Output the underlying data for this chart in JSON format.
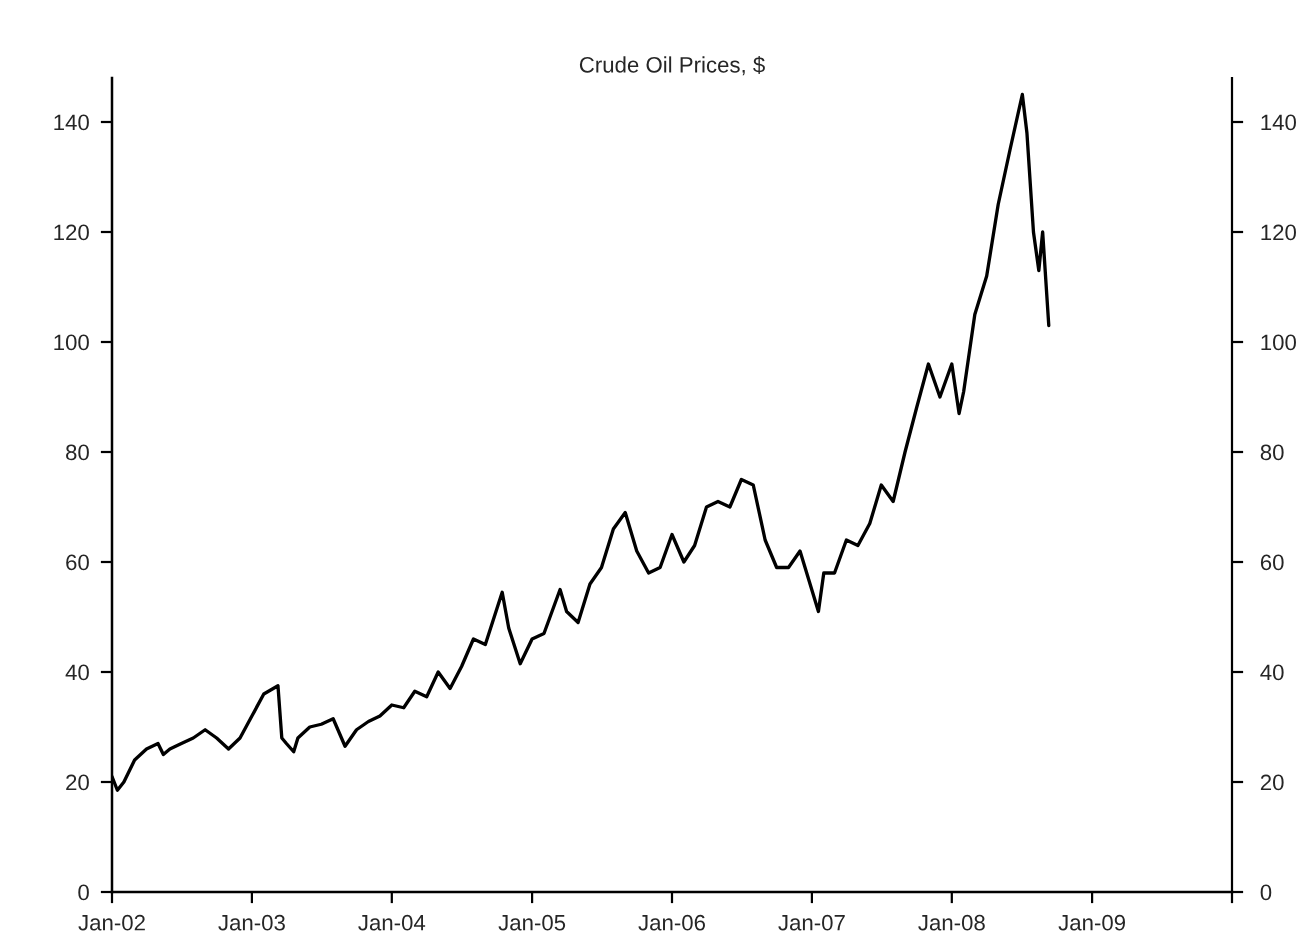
{
  "chart_data": {
    "type": "line",
    "title": "Crude Oil Prices, $",
    "x": [
      "2002-01-01",
      "2002-01-15",
      "2002-02-01",
      "2002-03-01",
      "2002-04-01",
      "2002-05-01",
      "2002-05-15",
      "2002-06-01",
      "2002-07-01",
      "2002-08-01",
      "2002-09-01",
      "2002-10-01",
      "2002-11-01",
      "2002-12-01",
      "2003-01-01",
      "2003-02-01",
      "2003-03-10",
      "2003-03-20",
      "2003-04-01",
      "2003-04-20",
      "2003-05-01",
      "2003-06-01",
      "2003-07-01",
      "2003-08-01",
      "2003-09-01",
      "2003-10-01",
      "2003-11-01",
      "2003-12-01",
      "2004-01-01",
      "2004-02-01",
      "2004-03-01",
      "2004-04-01",
      "2004-05-01",
      "2004-06-01",
      "2004-07-01",
      "2004-08-01",
      "2004-09-01",
      "2004-10-15",
      "2004-11-01",
      "2004-12-01",
      "2005-01-01",
      "2005-02-01",
      "2005-03-15",
      "2005-04-01",
      "2005-05-01",
      "2005-06-01",
      "2005-07-01",
      "2005-08-01",
      "2005-09-01",
      "2005-10-01",
      "2005-11-01",
      "2005-12-01",
      "2006-01-01",
      "2006-02-01",
      "2006-03-01",
      "2006-04-01",
      "2006-05-01",
      "2006-06-01",
      "2006-07-01",
      "2006-08-01",
      "2006-09-01",
      "2006-10-01",
      "2006-11-01",
      "2006-12-01",
      "2007-01-18",
      "2007-02-01",
      "2007-03-01",
      "2007-04-01",
      "2007-05-01",
      "2007-06-01",
      "2007-07-01",
      "2007-08-01",
      "2007-09-01",
      "2007-10-01",
      "2007-11-01",
      "2007-12-01",
      "2008-01-01",
      "2008-01-20",
      "2008-02-01",
      "2008-03-01",
      "2008-04-01",
      "2008-05-01",
      "2008-06-01",
      "2008-07-03",
      "2008-07-15",
      "2008-08-01",
      "2008-08-15",
      "2008-08-25",
      "2008-09-10"
    ],
    "series": [
      {
        "color": "#000000",
        "values": [
          21,
          18.5,
          20,
          24,
          26,
          27,
          25,
          26,
          27,
          28,
          29.5,
          28,
          26,
          28,
          32,
          36,
          37.5,
          28,
          27,
          25.5,
          28,
          30,
          30.5,
          31.5,
          26.5,
          29.5,
          31,
          32,
          34,
          33.5,
          36.5,
          35.5,
          40,
          37,
          41,
          46,
          45,
          54.5,
          48,
          41.5,
          46,
          47,
          55,
          51,
          49,
          56,
          59,
          66,
          69,
          62,
          58,
          59,
          65,
          60,
          63,
          70,
          71,
          70,
          75,
          74,
          64,
          59,
          59,
          62,
          51,
          58,
          58,
          64,
          63,
          67,
          74,
          71,
          80,
          88,
          96,
          90,
          96,
          87,
          91,
          105,
          112,
          125,
          135,
          145,
          138,
          120,
          113,
          120,
          103
        ]
      }
    ],
    "xlim": [
      "2002-01-01",
      "2010-01-01"
    ],
    "xticks": [
      {
        "value": "2002-01-01",
        "label": "Jan-02"
      },
      {
        "value": "2003-01-01",
        "label": "Jan-03"
      },
      {
        "value": "2004-01-01",
        "label": "Jan-04"
      },
      {
        "value": "2005-01-01",
        "label": "Jan-05"
      },
      {
        "value": "2006-01-01",
        "label": "Jan-06"
      },
      {
        "value": "2007-01-01",
        "label": "Jan-07"
      },
      {
        "value": "2008-01-01",
        "label": "Jan-08"
      },
      {
        "value": "2009-01-01",
        "label": "Jan-09"
      },
      {
        "value": "2010-01-01",
        "label": null
      }
    ],
    "ylim": [
      0,
      148
    ],
    "yticks": [
      0,
      20,
      40,
      60,
      80,
      100,
      120,
      140
    ],
    "y2lim": [
      0,
      148
    ],
    "y2ticks": [
      0,
      20,
      40,
      60,
      80,
      100,
      120,
      140
    ],
    "grid": false,
    "legend": false,
    "marker": "none",
    "line_style": "solid"
  }
}
